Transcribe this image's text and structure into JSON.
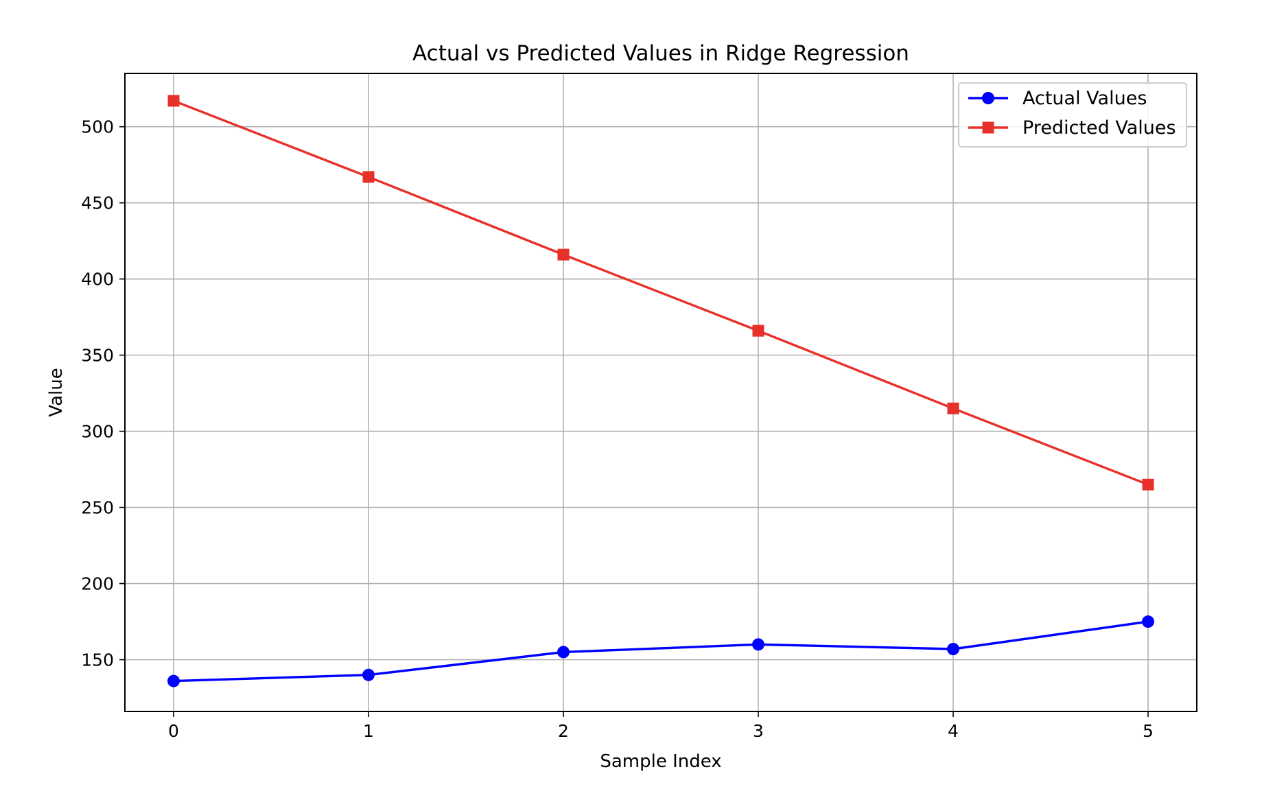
{
  "chart_data": {
    "type": "line",
    "title": "Actual vs Predicted Values in Ridge Regression",
    "xlabel": "Sample Index",
    "ylabel": "Value",
    "x": [
      0,
      1,
      2,
      3,
      4,
      5
    ],
    "x_ticks": [
      "0",
      "1",
      "2",
      "3",
      "4",
      "5"
    ],
    "y_ticks": [
      "150",
      "200",
      "250",
      "300",
      "350",
      "400",
      "450",
      "500"
    ],
    "xlim": [
      -0.25,
      5.25
    ],
    "ylim": [
      116,
      535
    ],
    "grid": true,
    "legend_position": "top-right",
    "series": [
      {
        "name": "Actual Values",
        "values": [
          136,
          140,
          155,
          160,
          157,
          175
        ],
        "color": "#0000ff",
        "marker": "circle"
      },
      {
        "name": "Predicted Values",
        "values": [
          517,
          467,
          416,
          366,
          315,
          265
        ],
        "color": "#e8302a",
        "marker": "square"
      }
    ]
  }
}
